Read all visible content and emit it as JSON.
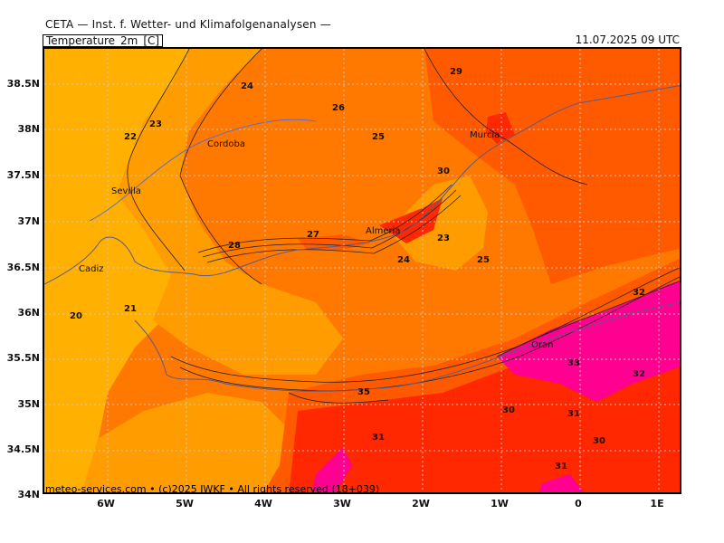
{
  "header": {
    "title": "CETA — Inst. f. Wetter- und Klimafolgenanalysen —",
    "parameter": "Temperature_2m_[C]",
    "datetime": "11.07.2025 09 UTC",
    "footer": "meteo-services.com • (c)2025 IWKF • All rights reserved (18+039)"
  },
  "axes": {
    "lat_labels": [
      "38.5N",
      "38N",
      "37.5N",
      "37N",
      "36.5N",
      "36N",
      "35.5N",
      "35N",
      "34.5N",
      "34N"
    ],
    "lon_labels": [
      "6W",
      "5W",
      "4W",
      "3W",
      "2W",
      "1W",
      "0",
      "1E"
    ]
  },
  "cities": [
    "Cordoba",
    "Sevilla",
    "Cadiz",
    "Murcia",
    "Almeria",
    "Oran"
  ],
  "isotherm_labels": [
    "24",
    "29",
    "23",
    "26",
    "22",
    "25",
    "30",
    "28",
    "27",
    "23",
    "24",
    "25",
    "21",
    "20",
    "32",
    "33",
    "31",
    "35",
    "30",
    "31",
    "30",
    "31",
    "32"
  ],
  "colors": {
    "t20": "#ffb000",
    "t24": "#ff9c00",
    "t26": "#ff7800",
    "t28": "#ff5a00",
    "t30": "#ff2800",
    "t32": "#ff0000",
    "t34": "#ff0090",
    "grid": "#c8c8c8"
  }
}
